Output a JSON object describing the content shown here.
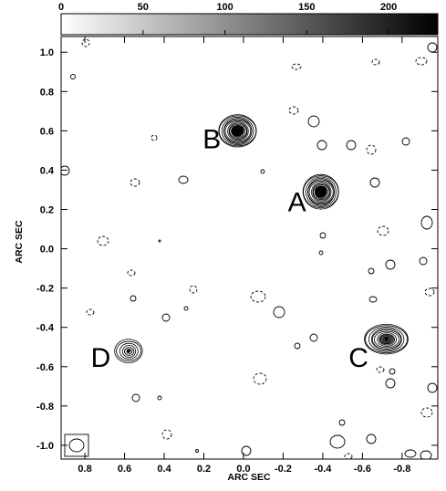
{
  "chart_data": {
    "type": "contour",
    "xlabel": "ARC SEC",
    "ylabel": "ARC SEC",
    "xlim": [
      0.92,
      -0.98
    ],
    "ylim": [
      -1.07,
      1.08
    ],
    "x_ticks": [
      0.8,
      0.6,
      0.4,
      0.2,
      0.0,
      -0.2,
      -0.4,
      -0.6,
      -0.8
    ],
    "x_tick_labels": [
      "0.8",
      "0.6",
      "0.4",
      "0.2",
      "0.0",
      "-0.2",
      "-0.4",
      "-0.6",
      "-0.8"
    ],
    "y_ticks": [
      1.0,
      0.8,
      0.6,
      0.4,
      0.2,
      0.0,
      -0.2,
      -0.4,
      -0.6,
      -0.8,
      -1.0
    ],
    "y_tick_labels": [
      "1.0",
      "0.8",
      "0.6",
      "0.4",
      "0.2",
      "0.0",
      "-0.2",
      "-0.4",
      "-0.6",
      "-0.8",
      "-1.0"
    ],
    "colorbar": {
      "min": 0,
      "max": 230,
      "ticks": [
        0,
        50,
        100,
        150,
        200
      ],
      "tick_labels": [
        "0",
        "50",
        "100",
        "150",
        "200"
      ],
      "colors": [
        "#ffffff",
        "#000000"
      ]
    },
    "sources": [
      {
        "name": "A",
        "x": -0.39,
        "y": 0.29,
        "peak": 230,
        "levels": 14,
        "rx": 0.09,
        "ry": 0.088,
        "label_x": -0.27,
        "label_y": 0.19
      },
      {
        "name": "B",
        "x": 0.03,
        "y": 0.6,
        "peak": 220,
        "levels": 14,
        "rx": 0.095,
        "ry": 0.082,
        "label_x": 0.16,
        "label_y": 0.51
      },
      {
        "name": "C",
        "x": -0.72,
        "y": -0.46,
        "peak": 140,
        "levels": 11,
        "rx": 0.11,
        "ry": 0.076,
        "label_x": -0.58,
        "label_y": -0.6
      },
      {
        "name": "D",
        "x": 0.58,
        "y": -0.52,
        "peak": 40,
        "levels": 6,
        "rx": 0.07,
        "ry": 0.06,
        "label_x": 0.72,
        "label_y": -0.6
      }
    ],
    "grid": false,
    "beam": {
      "position": "bottom-left"
    }
  }
}
